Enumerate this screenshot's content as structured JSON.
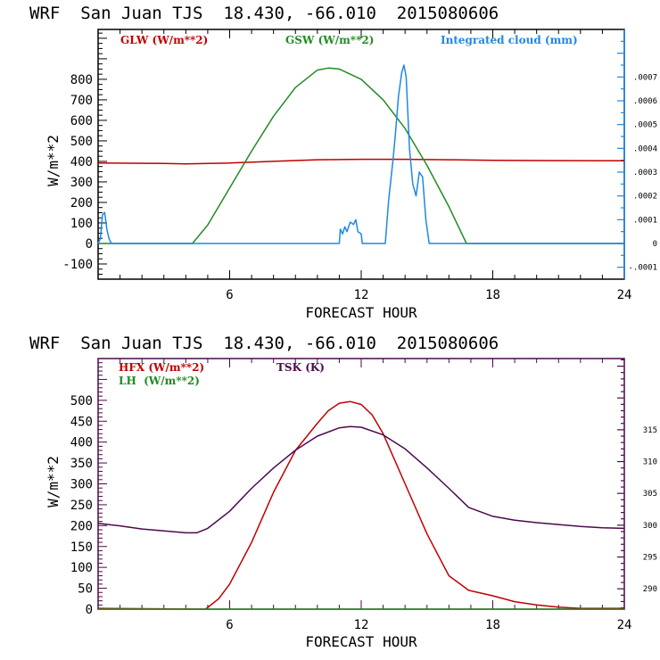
{
  "chart_data": [
    {
      "type": "line",
      "title": "WRF  San Juan TJS  18.430, -66.010  2015080606",
      "xlabel": "FORECAST HOUR",
      "ylabel": "W/m**2",
      "y2label": "",
      "xlim": [
        0,
        24
      ],
      "ylim": [
        -174,
        1043
      ],
      "y2lim": [
        -0.00015,
        0.0009
      ],
      "xticks": [
        6,
        12,
        18,
        24
      ],
      "xtick_labels": [
        "6",
        "12",
        "18",
        "24"
      ],
      "yticks": [
        -100,
        0,
        100,
        200,
        300,
        400,
        500,
        600,
        700,
        800
      ],
      "ytick_labels": [
        "-100",
        "0",
        "100",
        "200",
        "300",
        "400",
        "500",
        "600",
        "700",
        "800"
      ],
      "y2ticks": [
        -0.0001,
        0,
        0.0001,
        0.0002,
        0.0003,
        0.0004,
        0.0005,
        0.0006,
        0.0007
      ],
      "y2tick_labels": [
        "-.0001",
        "0",
        ".0001",
        ".0002",
        ".0003",
        ".0004",
        ".0005",
        ".0006",
        ".0007"
      ],
      "grid": false,
      "legend_placement": "top",
      "series": [
        {
          "name": "GLW (W/m**2)",
          "color": "#c00000",
          "axis": "left",
          "x": [
            0,
            3,
            4,
            5,
            6,
            8,
            10,
            12,
            14,
            16,
            18,
            20,
            24
          ],
          "values": [
            392,
            390,
            388,
            390,
            392,
            400,
            408,
            410,
            410,
            408,
            405,
            404,
            403
          ]
        },
        {
          "name": "GSW (W/m**2)",
          "color": "#228b22",
          "axis": "left",
          "x": [
            0,
            4.3,
            5,
            6,
            7,
            8,
            9,
            10,
            10.5,
            11,
            12,
            13,
            14,
            15,
            16,
            16.8,
            24
          ],
          "values": [
            0,
            0,
            90,
            270,
            450,
            620,
            760,
            845,
            855,
            850,
            800,
            700,
            560,
            380,
            180,
            0,
            0
          ]
        },
        {
          "name": "Integrated cloud (mm)",
          "color": "#1e88e5",
          "axis": "right",
          "x": [
            0,
            0.1,
            0.2,
            0.3,
            0.4,
            0.5,
            0.6,
            1,
            11,
            11.05,
            11.15,
            11.25,
            11.35,
            11.5,
            11.65,
            11.75,
            11.85,
            12,
            12.05,
            13.1,
            13.25,
            13.45,
            13.55,
            13.7,
            13.85,
            13.95,
            14.05,
            14.2,
            14.35,
            14.5,
            14.65,
            14.8,
            14.95,
            15.1,
            15.5,
            24
          ],
          "values": [
            0,
            2e-05,
            0.00012,
            0.00013,
            6e-05,
            2e-05,
            0,
            0,
            0,
            6e-05,
            4e-05,
            7e-05,
            5e-05,
            9e-05,
            8e-05,
            0.0001,
            5e-05,
            4e-05,
            0,
            0,
            0.00018,
            0.00035,
            0.00045,
            0.00062,
            0.00072,
            0.00075,
            0.0007,
            0.0004,
            0.00025,
            0.0002,
            0.0003,
            0.00028,
            0.0001,
            0,
            0,
            0
          ]
        }
      ]
    },
    {
      "type": "line",
      "title": "WRF  San Juan TJS  18.430, -66.010  2015080606",
      "xlabel": "FORECAST HOUR",
      "ylabel": "W/m**2",
      "xlim": [
        0,
        24
      ],
      "ylim": [
        0,
        600
      ],
      "y2lim": [
        286.8,
        326.2
      ],
      "xticks": [
        6,
        12,
        18,
        24
      ],
      "xtick_labels": [
        "6",
        "12",
        "18",
        "24"
      ],
      "yticks": [
        0,
        50,
        100,
        150,
        200,
        250,
        300,
        350,
        400,
        450,
        500
      ],
      "ytick_labels": [
        "0",
        "50",
        "100",
        "150",
        "200",
        "250",
        "300",
        "350",
        "400",
        "450",
        "500"
      ],
      "y2ticks": [
        290,
        295,
        300,
        305,
        310,
        315
      ],
      "y2tick_labels": [
        "290",
        "295",
        "300",
        "305",
        "310",
        "315"
      ],
      "grid": false,
      "legend_placement": "top",
      "series": [
        {
          "name": "HFX (W/m**2)",
          "color": "#c00000",
          "axis": "left",
          "x": [
            0,
            4.9,
            5.5,
            6,
            7,
            8,
            9,
            10,
            10.5,
            11,
            11.5,
            12,
            12.5,
            13,
            14,
            15,
            16,
            16.9,
            18,
            19,
            20,
            21,
            22,
            24
          ],
          "values": [
            2,
            0,
            25,
            60,
            160,
            280,
            380,
            445,
            475,
            493,
            497,
            490,
            465,
            420,
            300,
            180,
            80,
            45,
            32,
            18,
            10,
            5,
            2,
            2
          ]
        },
        {
          "name": "LH (W/m**2)",
          "color": "#228b22",
          "axis": "left",
          "x": [
            0,
            24
          ],
          "values": [
            0,
            0
          ]
        },
        {
          "name": "TSK (K)",
          "color": "#4b0a4b",
          "axis": "right",
          "x": [
            0,
            1,
            2,
            3,
            4,
            4.5,
            5,
            6,
            7,
            8,
            9,
            10,
            11,
            11.5,
            12,
            13,
            14,
            15,
            16,
            16.9,
            18,
            19,
            20,
            21,
            22,
            23,
            24
          ],
          "values": [
            300.3,
            299.9,
            299.4,
            299.1,
            298.8,
            298.8,
            299.5,
            302.2,
            305.8,
            309.0,
            311.8,
            314.0,
            315.3,
            315.5,
            315.4,
            314.2,
            312.0,
            309.0,
            305.8,
            302.8,
            301.4,
            300.8,
            300.4,
            300.1,
            299.8,
            299.6,
            299.5
          ]
        }
      ]
    }
  ],
  "panels": [
    {
      "title": "WRF  San Juan TJS  18.430, -66.010  2015080606",
      "ylabel": "W/m**2",
      "xlabel": "FORECAST HOUR",
      "legend": [
        {
          "label": "GLW (W/m**2)",
          "color": "#c00000"
        },
        {
          "label": "GSW (W/m**2)",
          "color": "#228b22"
        },
        {
          "label": "Integrated cloud (mm)",
          "color": "#1e88e5"
        }
      ]
    },
    {
      "title": "WRF  San Juan TJS  18.430, -66.010  2015080606",
      "ylabel": "W/m**2",
      "xlabel": "FORECAST HOUR",
      "legend": [
        {
          "label": "HFX (W/m**2)",
          "color": "#c00000"
        },
        {
          "label": "LH  (W/m**2)",
          "color": "#228b22"
        },
        {
          "label": "TSK (K)",
          "color": "#4b0a4b"
        }
      ]
    }
  ]
}
